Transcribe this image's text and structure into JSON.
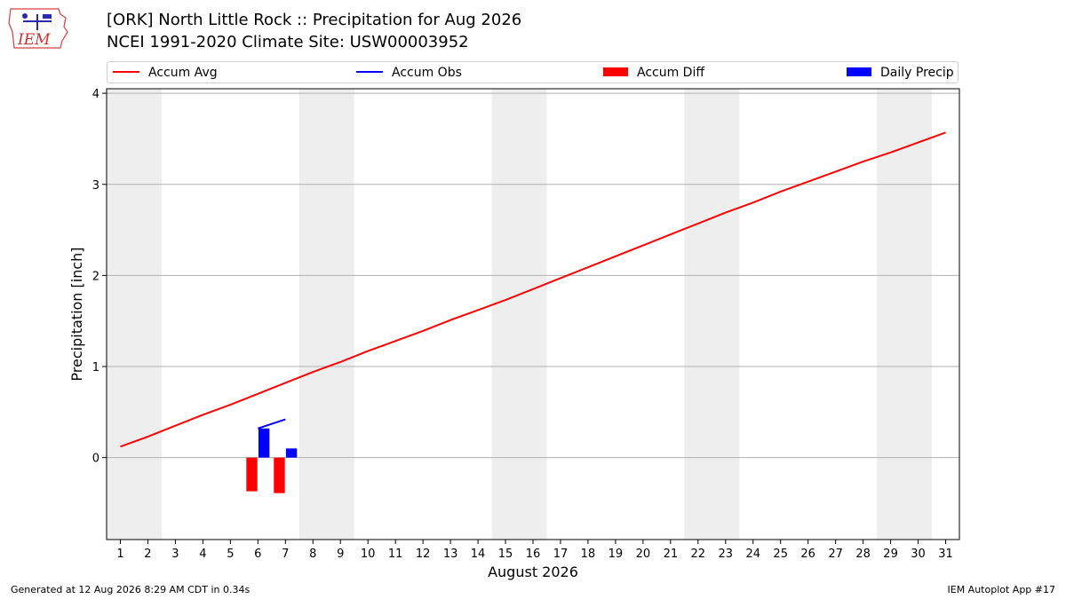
{
  "header": {
    "logo_text": "IEM",
    "title_line1": "[ORK] North Little Rock :: Precipitation for Aug 2026",
    "title_line2": "NCEI 1991-2020 Climate Site: USW00003952"
  },
  "legend": {
    "items": [
      {
        "label": "Accum Avg",
        "color": "#ff0000",
        "kind": "line"
      },
      {
        "label": "Accum Obs",
        "color": "#0000ff",
        "kind": "line"
      },
      {
        "label": "Accum Diff",
        "color": "#ff0000",
        "kind": "patch"
      },
      {
        "label": "Daily Precip",
        "color": "#0000ff",
        "kind": "patch"
      }
    ]
  },
  "footer": {
    "left": "Generated at 12 Aug 2026 8:29 AM CDT in 0.34s",
    "right": "IEM Autoplot App #17"
  },
  "chart_data": {
    "type": "line",
    "xlabel": "August 2026",
    "ylabel": "Precipitation [inch]",
    "xlim": [
      0.5,
      31.5
    ],
    "ylim": [
      -0.9,
      4.05
    ],
    "xticks": [
      1,
      2,
      3,
      4,
      5,
      6,
      7,
      8,
      9,
      10,
      11,
      12,
      13,
      14,
      15,
      16,
      17,
      18,
      19,
      20,
      21,
      22,
      23,
      24,
      25,
      26,
      27,
      28,
      29,
      30,
      31
    ],
    "yticks": [
      0,
      1,
      2,
      3,
      4
    ],
    "weekend_bands": [
      [
        0.5,
        2.5
      ],
      [
        7.5,
        9.5
      ],
      [
        14.5,
        16.5
      ],
      [
        21.5,
        23.5
      ],
      [
        28.5,
        30.5
      ]
    ],
    "grid": "y",
    "legend_position": "top",
    "series": [
      {
        "name": "Accum Avg",
        "kind": "line",
        "color": "#ff0000",
        "x": [
          1,
          2,
          3,
          4,
          5,
          6,
          7,
          8,
          9,
          10,
          11,
          12,
          13,
          14,
          15,
          16,
          17,
          18,
          19,
          20,
          21,
          22,
          23,
          24,
          25,
          26,
          27,
          28,
          29,
          30,
          31
        ],
        "values": [
          0.12,
          0.23,
          0.35,
          0.47,
          0.58,
          0.7,
          0.82,
          0.94,
          1.05,
          1.17,
          1.28,
          1.39,
          1.51,
          1.62,
          1.73,
          1.85,
          1.97,
          2.09,
          2.21,
          2.33,
          2.45,
          2.57,
          2.69,
          2.8,
          2.92,
          3.03,
          3.14,
          3.25,
          3.35,
          3.46,
          3.57
        ]
      },
      {
        "name": "Accum Obs",
        "kind": "line",
        "color": "#0000ff",
        "x": [
          6,
          7
        ],
        "values": [
          0.32,
          0.42
        ]
      },
      {
        "name": "Accum Diff",
        "kind": "bar",
        "color": "#ff0000",
        "x": [
          6,
          7
        ],
        "values": [
          -0.37,
          -0.39
        ]
      },
      {
        "name": "Daily Precip",
        "kind": "bar",
        "color": "#0000ff",
        "x": [
          6,
          7
        ],
        "values": [
          0.32,
          0.1
        ]
      }
    ]
  }
}
